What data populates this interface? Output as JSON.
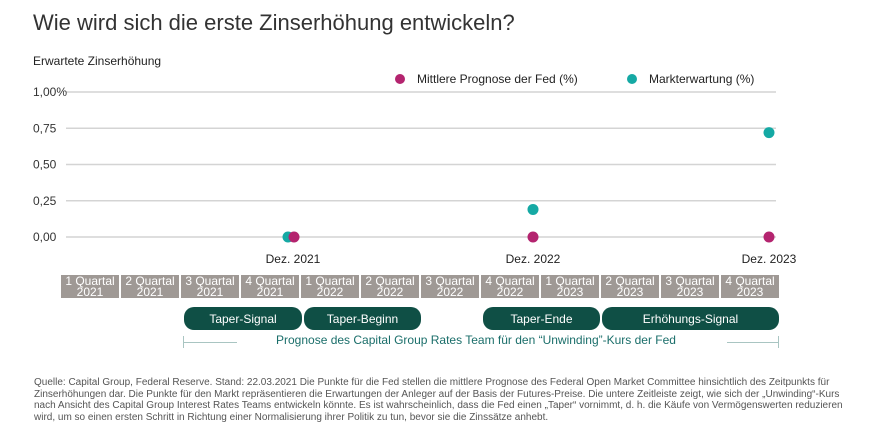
{
  "title": "Wie wird sich die erste Zinserhöhung entwickeln?",
  "colors": {
    "fed": "#b4246f",
    "market": "#15a9a4",
    "quarter_bg": "#9f9995",
    "phase_bg": "#0f4f45",
    "forecast_text": "#1a6e6a"
  },
  "chart_data": {
    "type": "scatter",
    "title": "Wie wird sich die erste Zinserhöhung entwickeln?",
    "ylabel": "Erwartete Zinserhöhung",
    "ylim": [
      0,
      1.0
    ],
    "yticks": [
      "1,00%",
      "0,75",
      "0,50",
      "0,25",
      "0,00"
    ],
    "ytick_values": [
      1.0,
      0.75,
      0.5,
      0.25,
      0.0
    ],
    "categories": [
      "Dez. 2021",
      "Dez. 2022",
      "Dez. 2023"
    ],
    "grid": true,
    "legend_position": "top-right",
    "series": [
      {
        "name": "Mittlere Prognose der Fed (%)",
        "color": "#b4246f",
        "values": [
          0.0,
          0.0,
          0.0
        ]
      },
      {
        "name": "Markterwartung (%)",
        "color": "#15a9a4",
        "values": [
          0.0,
          0.19,
          0.72
        ]
      }
    ]
  },
  "quarters": [
    {
      "q": "1 Quartal",
      "y": "2021"
    },
    {
      "q": "2 Quartal",
      "y": "2021"
    },
    {
      "q": "3 Quartal",
      "y": "2021"
    },
    {
      "q": "4 Quartal",
      "y": "2021"
    },
    {
      "q": "1 Quartal",
      "y": "2022"
    },
    {
      "q": "2 Quartal",
      "y": "2022"
    },
    {
      "q": "3 Quartal",
      "y": "2022"
    },
    {
      "q": "4 Quartal",
      "y": "2022"
    },
    {
      "q": "1 Quartal",
      "y": "2023"
    },
    {
      "q": "2 Quartal",
      "y": "2023"
    },
    {
      "q": "3 Quartal",
      "y": "2023"
    },
    {
      "q": "4 Quartal",
      "y": "2023"
    }
  ],
  "phases": [
    "Taper-Signal",
    "Taper-Beginn",
    "Taper-Ende",
    "Erhöhungs-Signal"
  ],
  "forecast_label": "Prognose des Capital Group Rates Team für den “Unwinding”-Kurs der Fed",
  "note": "Quelle: Capital Group, Federal Reserve. Stand: 22.03.2021 Die Punkte für die Fed stellen die mittlere Prognose des Federal Open Market Committee hinsichtlich des Zeitpunkts für Zinserhöhungen dar. Die Punkte für den Markt repräsentieren die Erwartungen der Anleger auf der Basis der Futures-Preise. Die untere Zeitleiste zeigt, wie sich der „Unwinding“-Kurs nach Ansicht des Capital Group Interest Rates Teams entwickeln könnte. Es ist wahrscheinlich, dass die Fed einen „Taper“ vornimmt, d. h. die Käufe von Vermögenswerten reduzieren wird, um so einen ersten Schritt in Richtung einer Normalisierung ihrer Politik zu tun, bevor sie die Zinssätze anhebt."
}
